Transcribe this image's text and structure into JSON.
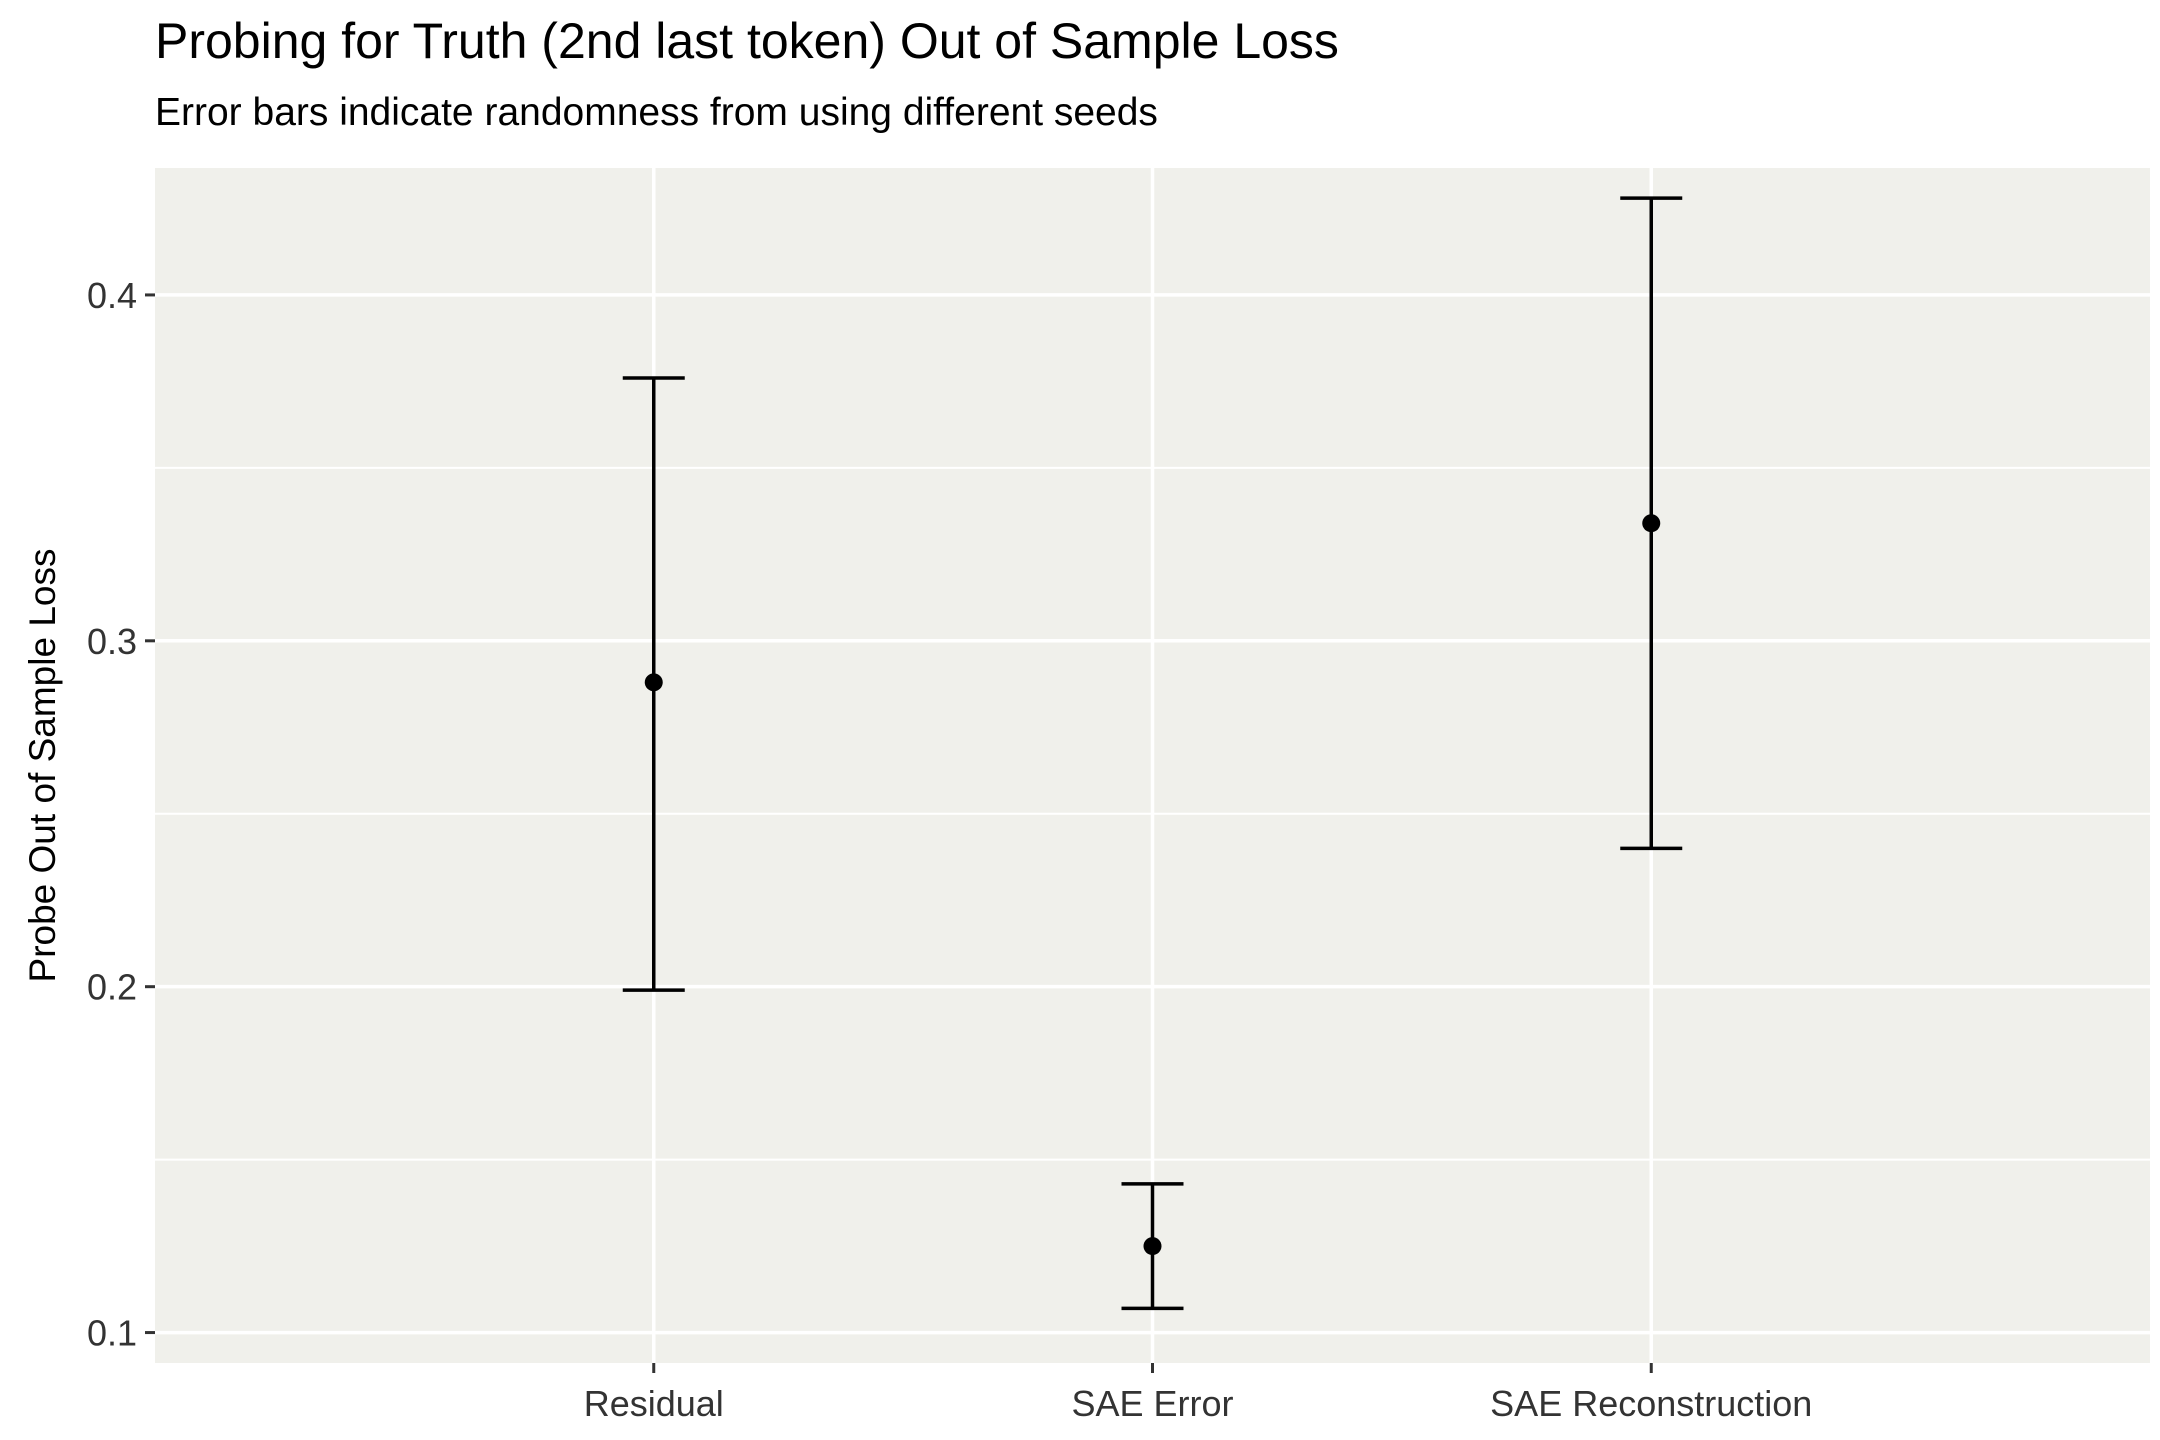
{
  "chart_data": {
    "type": "errorbar",
    "title": "Probing for Truth (2nd last token) Out of Sample Loss",
    "subtitle": "Error bars indicate randomness from using different seeds",
    "xlabel": "",
    "ylabel": "Probe Out of Sample Loss",
    "categories": [
      "Residual",
      "SAE Error",
      "SAE Reconstruction"
    ],
    "points": [
      {
        "category": "Residual",
        "y": 0.288,
        "ymin": 0.199,
        "ymax": 0.376
      },
      {
        "category": "SAE Error",
        "y": 0.125,
        "ymin": 0.107,
        "ymax": 0.143
      },
      {
        "category": "SAE Reconstruction",
        "y": 0.334,
        "ymin": 0.24,
        "ymax": 0.428
      }
    ],
    "yticks": [
      0.1,
      0.2,
      0.3,
      0.4
    ],
    "ytick_labels": [
      "0.1",
      "0.2",
      "0.3",
      "0.4"
    ],
    "ylim": [
      0.0912,
      0.4367
    ],
    "grid": true,
    "legend": "none",
    "colors": {
      "panel": "#f0f0eb",
      "grid": "#ffffff",
      "mark": "#000000",
      "tick_label": "#333333"
    }
  }
}
